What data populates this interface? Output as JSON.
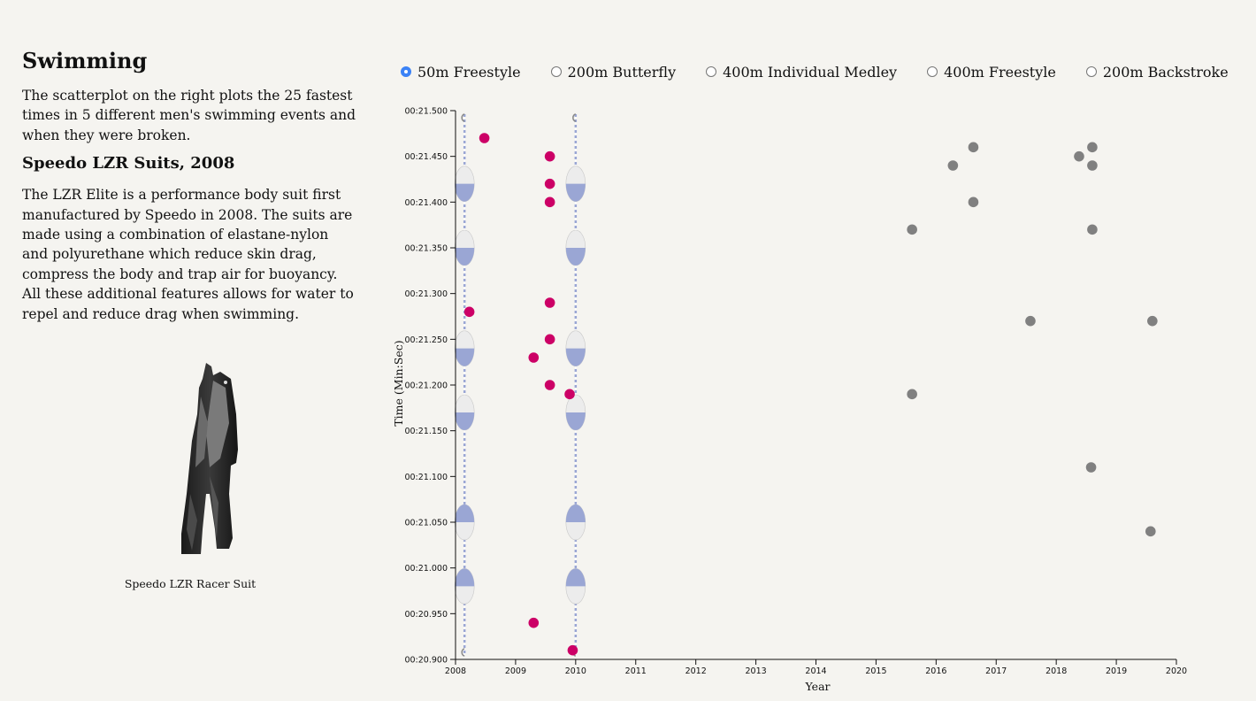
{
  "intro": {
    "title": "Swimming",
    "paragraph": "The scatterplot on the right plots the 25 fastest times in 5 different men's swimming events and when they were broken."
  },
  "suit_section": {
    "title": "Speedo LZR Suits, 2008",
    "paragraph": "The LZR Elite is a performance body suit first manufactured by Speedo in 2008. The suits are made using a combination of elastane-nylon and polyurethane which reduce skin drag, compress the body and trap air for buoyancy. All these additional features allows for water to repel and reduce drag when swimming.",
    "caption": "Speedo LZR Racer Suit"
  },
  "events": [
    {
      "label": "50m Freestyle",
      "checked": true
    },
    {
      "label": "200m Butterfly",
      "checked": false
    },
    {
      "label": "400m Individual Medley",
      "checked": false
    },
    {
      "label": "400m Freestyle",
      "checked": false
    },
    {
      "label": "200m Backstroke",
      "checked": false
    }
  ],
  "colors": {
    "background": "#f5f4f0",
    "suit_era": "#cc0066",
    "post_suit": "#808080",
    "radio_checked": "#3b82f6",
    "buoy_blue": "#9aa6d4",
    "buoy_white": "#ececec"
  },
  "chart_data": {
    "type": "scatter",
    "xlabel": "Year",
    "ylabel": "Time (Min:Sec)",
    "xlim": [
      2008,
      2020
    ],
    "ylim": [
      20.9,
      21.5
    ],
    "x_ticks": [
      "2008",
      "2009",
      "2010",
      "2011",
      "2012",
      "2013",
      "2014",
      "2015",
      "2016",
      "2017",
      "2018",
      "2019",
      "2020"
    ],
    "y_ticks": [
      {
        "value": 21.5,
        "label": "00:21.500"
      },
      {
        "value": 21.45,
        "label": "00:21.450"
      },
      {
        "value": 21.4,
        "label": "00:21.400"
      },
      {
        "value": 21.35,
        "label": "00:21.350"
      },
      {
        "value": 21.3,
        "label": "00:21.300"
      },
      {
        "value": 21.25,
        "label": "00:21.250"
      },
      {
        "value": 21.2,
        "label": "00:21.200"
      },
      {
        "value": 21.15,
        "label": "00:21.150"
      },
      {
        "value": 21.1,
        "label": "00:21.100"
      },
      {
        "value": 21.05,
        "label": "00:21.050"
      },
      {
        "value": 21.0,
        "label": "00:21.000"
      },
      {
        "value": 20.95,
        "label": "00:20.950"
      },
      {
        "value": 20.9,
        "label": "00:20.900"
      }
    ],
    "lane_ropes_at_year": [
      2008.15,
      2010.0
    ],
    "series": [
      {
        "color": "#cc0066",
        "points": [
          {
            "x": 2008.48,
            "y": 21.47
          },
          {
            "x": 2008.23,
            "y": 21.28
          },
          {
            "x": 2009.57,
            "y": 21.45
          },
          {
            "x": 2009.57,
            "y": 21.42
          },
          {
            "x": 2009.57,
            "y": 21.4
          },
          {
            "x": 2009.57,
            "y": 21.29
          },
          {
            "x": 2009.57,
            "y": 21.25
          },
          {
            "x": 2009.3,
            "y": 21.23
          },
          {
            "x": 2009.57,
            "y": 21.2
          },
          {
            "x": 2009.9,
            "y": 21.19
          },
          {
            "x": 2009.3,
            "y": 20.94
          },
          {
            "x": 2009.95,
            "y": 20.91
          }
        ]
      },
      {
        "color": "#808080",
        "points": [
          {
            "x": 2016.62,
            "y": 21.46
          },
          {
            "x": 2016.28,
            "y": 21.44
          },
          {
            "x": 2016.62,
            "y": 21.4
          },
          {
            "x": 2015.6,
            "y": 21.37
          },
          {
            "x": 2015.6,
            "y": 21.19
          },
          {
            "x": 2017.57,
            "y": 21.27
          },
          {
            "x": 2018.38,
            "y": 21.45
          },
          {
            "x": 2018.6,
            "y": 21.46
          },
          {
            "x": 2018.6,
            "y": 21.44
          },
          {
            "x": 2018.6,
            "y": 21.37
          },
          {
            "x": 2018.58,
            "y": 21.11
          },
          {
            "x": 2019.6,
            "y": 21.27
          },
          {
            "x": 2019.57,
            "y": 21.04
          }
        ]
      }
    ]
  }
}
